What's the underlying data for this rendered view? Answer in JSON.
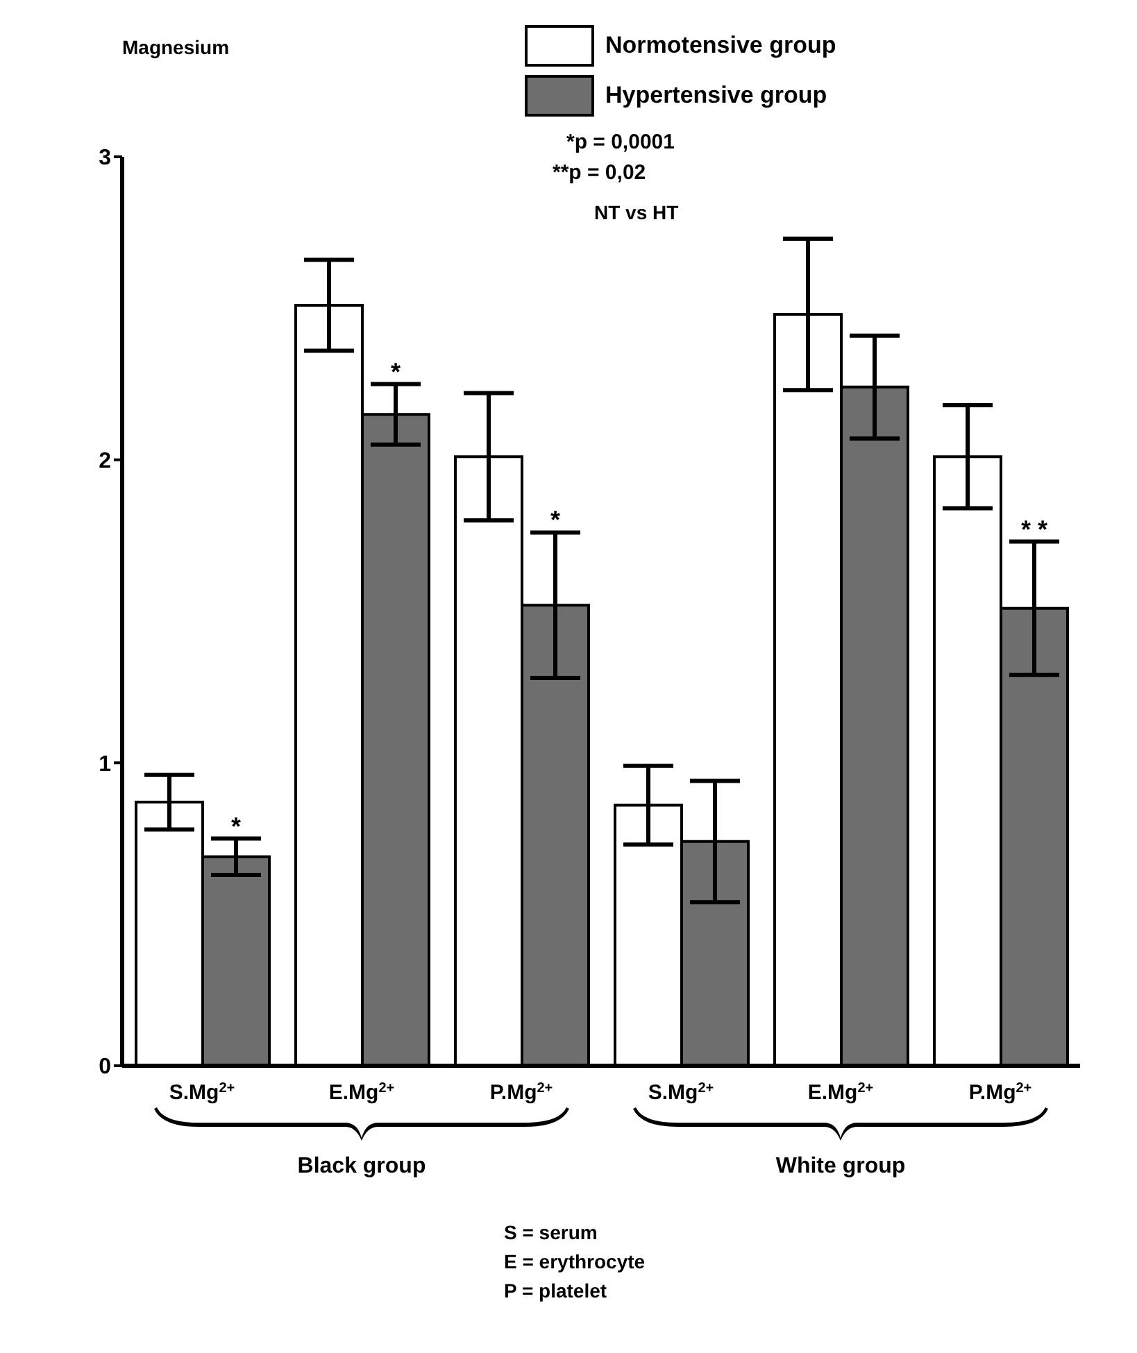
{
  "chart_data": {
    "type": "bar",
    "ylabel": "Magnesium",
    "categories": [
      "S.Mg$^{2+}$",
      "E.Mg$^{2+}$",
      "P.Mg$^{2+}$",
      "S.Mg$^{2+}$",
      "E.Mg$^{2+}$",
      "P.Mg$^{2+}$"
    ],
    "series": [
      {
        "name": "Normotensive group",
        "color": "#ffffff",
        "values": [
          0.87,
          2.51,
          2.01,
          0.86,
          2.48,
          2.01
        ],
        "errors": [
          0.09,
          0.15,
          0.21,
          0.13,
          0.25,
          0.17
        ]
      },
      {
        "name": "Hypertensive group",
        "color": "#6e6e6e",
        "values": [
          0.69,
          2.15,
          1.52,
          0.74,
          2.24,
          1.51
        ],
        "errors": [
          0.06,
          0.1,
          0.24,
          0.2,
          0.17,
          0.22
        ],
        "value_labels": [
          " * ",
          " * ",
          " * ",
          null,
          null,
          "* *"
        ]
      }
    ],
    "ylim": [
      0,
      3
    ],
    "yticks": [
      0,
      1,
      2,
      3
    ],
    "legend": "top",
    "annotations": [
      "*p = 0,0001",
      "**p = 0,02",
      "NT vs HT",
      "Black group",
      "White group",
      "S = serum",
      "E = erythrocyte",
      "P = platelet"
    ]
  }
}
